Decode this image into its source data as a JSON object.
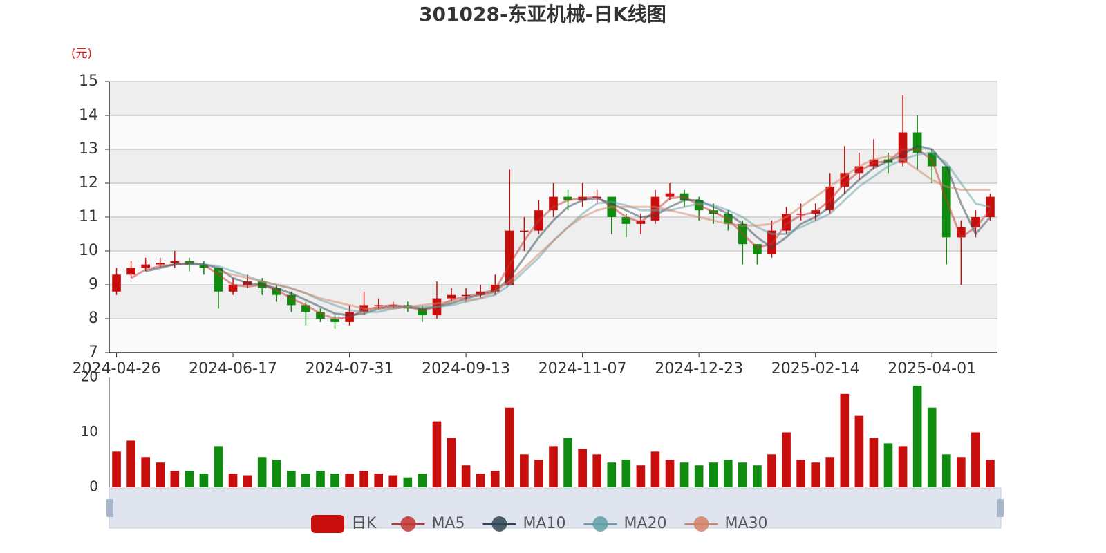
{
  "chart_data": {
    "type": "candlestick",
    "title": "301028-东亚机械-日K线图",
    "y_unit": "(元)",
    "candle_name": "日K",
    "up_color": "#c80d0d",
    "down_color": "#0f8c0f",
    "grid": true,
    "ylim": [
      7,
      15
    ],
    "yticks": [
      7,
      8,
      9,
      10,
      11,
      12,
      13,
      14,
      15
    ],
    "categories": [
      "2024-04-26",
      null,
      null,
      null,
      null,
      null,
      null,
      null,
      "2024-06-17",
      null,
      null,
      null,
      null,
      null,
      null,
      null,
      "2024-07-31",
      null,
      null,
      null,
      null,
      null,
      null,
      null,
      "2024-09-13",
      null,
      null,
      null,
      null,
      null,
      null,
      null,
      "2024-11-07",
      null,
      null,
      null,
      null,
      null,
      null,
      null,
      "2024-12-23",
      null,
      null,
      null,
      null,
      null,
      null,
      null,
      "2025-02-14",
      null,
      null,
      null,
      null,
      null,
      null,
      null,
      "2025-04-01",
      null,
      null,
      null,
      null
    ],
    "candles": [
      [
        8.8,
        9.3,
        8.7,
        9.5
      ],
      [
        9.3,
        9.5,
        9.2,
        9.7
      ],
      [
        9.5,
        9.6,
        9.4,
        9.8
      ],
      [
        9.6,
        9.65,
        9.5,
        9.8
      ],
      [
        9.65,
        9.7,
        9.5,
        10.0
      ],
      [
        9.7,
        9.6,
        9.4,
        9.8
      ],
      [
        9.6,
        9.5,
        9.3,
        9.7
      ],
      [
        9.5,
        8.8,
        8.3,
        9.5
      ],
      [
        8.8,
        9.0,
        8.7,
        9.2
      ],
      [
        9.0,
        9.1,
        8.9,
        9.3
      ],
      [
        9.1,
        8.9,
        8.7,
        9.2
      ],
      [
        8.9,
        8.7,
        8.5,
        9.0
      ],
      [
        8.7,
        8.4,
        8.2,
        8.8
      ],
      [
        8.4,
        8.2,
        7.8,
        8.5
      ],
      [
        8.2,
        8.0,
        7.9,
        8.3
      ],
      [
        8.0,
        7.9,
        7.7,
        8.1
      ],
      [
        7.9,
        8.2,
        7.8,
        8.4
      ],
      [
        8.2,
        8.4,
        8.1,
        8.8
      ],
      [
        8.4,
        8.4,
        8.3,
        8.6
      ],
      [
        8.4,
        8.4,
        8.3,
        8.5
      ],
      [
        8.4,
        8.3,
        8.2,
        8.5
      ],
      [
        8.3,
        8.1,
        7.9,
        8.4
      ],
      [
        8.1,
        8.6,
        8.0,
        9.1
      ],
      [
        8.6,
        8.7,
        8.5,
        8.9
      ],
      [
        8.7,
        8.7,
        8.5,
        8.9
      ],
      [
        8.7,
        8.8,
        8.6,
        9.0
      ],
      [
        8.8,
        9.0,
        8.7,
        9.3
      ],
      [
        9.0,
        10.6,
        9.0,
        12.4
      ],
      [
        10.6,
        10.6,
        10.0,
        11.0
      ],
      [
        10.6,
        11.2,
        10.5,
        11.5
      ],
      [
        11.2,
        11.6,
        11.0,
        12.0
      ],
      [
        11.6,
        11.5,
        11.2,
        11.8
      ],
      [
        11.5,
        11.6,
        11.3,
        12.0
      ],
      [
        11.6,
        11.6,
        11.4,
        11.8
      ],
      [
        11.6,
        11.0,
        10.5,
        11.6
      ],
      [
        11.0,
        10.8,
        10.4,
        11.1
      ],
      [
        10.8,
        10.9,
        10.5,
        11.1
      ],
      [
        10.9,
        11.6,
        10.8,
        11.8
      ],
      [
        11.6,
        11.7,
        11.5,
        12.0
      ],
      [
        11.7,
        11.5,
        11.3,
        11.8
      ],
      [
        11.5,
        11.2,
        10.9,
        11.6
      ],
      [
        11.2,
        11.1,
        10.8,
        11.4
      ],
      [
        11.1,
        10.8,
        10.6,
        11.2
      ],
      [
        10.8,
        10.2,
        9.6,
        10.9
      ],
      [
        10.2,
        9.9,
        9.6,
        10.2
      ],
      [
        9.9,
        10.6,
        9.8,
        10.9
      ],
      [
        10.6,
        11.1,
        10.5,
        11.3
      ],
      [
        11.1,
        11.1,
        10.9,
        11.4
      ],
      [
        11.1,
        11.2,
        10.9,
        11.4
      ],
      [
        11.2,
        11.9,
        11.1,
        12.3
      ],
      [
        11.9,
        12.3,
        11.7,
        13.1
      ],
      [
        12.3,
        12.5,
        12.1,
        12.9
      ],
      [
        12.5,
        12.7,
        12.4,
        13.3
      ],
      [
        12.7,
        12.6,
        12.3,
        12.9
      ],
      [
        12.6,
        13.5,
        12.5,
        14.6
      ],
      [
        13.5,
        12.9,
        12.4,
        14.0
      ],
      [
        12.9,
        12.5,
        12.0,
        13.0
      ],
      [
        12.5,
        10.4,
        9.6,
        12.5
      ],
      [
        10.4,
        10.7,
        9.0,
        10.9
      ],
      [
        10.7,
        11.0,
        10.4,
        11.2
      ],
      [
        11.0,
        11.6,
        10.9,
        11.7
      ]
    ],
    "series": [
      {
        "name": "MA5",
        "color": "#c23531",
        "values": [
          null,
          9.2,
          9.45,
          9.55,
          9.6,
          9.65,
          9.6,
          9.3,
          9.0,
          8.95,
          9.0,
          8.85,
          8.6,
          8.4,
          8.15,
          8.0,
          8.05,
          8.25,
          8.35,
          8.4,
          8.35,
          8.25,
          8.35,
          8.55,
          8.65,
          8.75,
          8.85,
          9.6,
          10.3,
          10.9,
          11.3,
          11.5,
          11.55,
          11.6,
          11.3,
          11.0,
          10.85,
          11.2,
          11.55,
          11.6,
          11.35,
          11.15,
          10.95,
          10.5,
          10.1,
          10.2,
          10.8,
          11.05,
          11.15,
          11.5,
          12.0,
          12.35,
          12.6,
          12.65,
          13.0,
          13.0,
          12.7,
          11.5,
          10.4,
          10.7,
          11.2
        ]
      },
      {
        "name": "MA10",
        "color": "#2f4554",
        "values": [
          null,
          null,
          9.4,
          9.5,
          9.6,
          9.62,
          9.6,
          9.5,
          9.2,
          9.05,
          9.0,
          8.9,
          8.75,
          8.55,
          8.35,
          8.15,
          8.1,
          8.15,
          8.3,
          8.35,
          8.35,
          8.3,
          8.35,
          8.45,
          8.6,
          8.7,
          8.8,
          9.2,
          9.8,
          10.4,
          10.9,
          11.3,
          11.5,
          11.55,
          11.4,
          11.2,
          11.0,
          11.05,
          11.3,
          11.5,
          11.5,
          11.3,
          11.1,
          10.8,
          10.4,
          10.1,
          10.4,
          10.8,
          11.0,
          11.3,
          11.7,
          12.1,
          12.45,
          12.65,
          12.85,
          13.1,
          13.0,
          12.5,
          11.4,
          10.5,
          11.0
        ]
      },
      {
        "name": "MA20",
        "color": "#61a0a8",
        "values": [
          null,
          null,
          null,
          null,
          null,
          9.6,
          9.6,
          9.55,
          9.4,
          9.25,
          9.1,
          9.0,
          8.9,
          8.75,
          8.55,
          8.4,
          8.25,
          8.2,
          8.2,
          8.3,
          8.35,
          8.35,
          8.35,
          8.4,
          8.5,
          8.6,
          8.7,
          9.0,
          9.4,
          9.8,
          10.3,
          10.7,
          11.1,
          11.4,
          11.45,
          11.35,
          11.2,
          11.2,
          11.2,
          11.3,
          11.4,
          11.35,
          11.2,
          11.0,
          10.7,
          10.5,
          10.5,
          10.7,
          10.9,
          11.1,
          11.5,
          11.9,
          12.2,
          12.5,
          12.7,
          12.85,
          12.9,
          12.6,
          12.0,
          11.4,
          11.3
        ]
      },
      {
        "name": "MA30",
        "color": "#d48265",
        "values": [
          null,
          null,
          null,
          null,
          null,
          null,
          null,
          9.4,
          9.3,
          9.2,
          9.1,
          9.0,
          8.9,
          8.75,
          8.6,
          8.5,
          8.4,
          8.3,
          8.3,
          8.3,
          8.35,
          8.4,
          8.45,
          8.5,
          8.55,
          8.6,
          8.8,
          9.1,
          9.5,
          9.9,
          10.3,
          10.7,
          11.0,
          11.2,
          11.3,
          11.3,
          11.3,
          11.3,
          11.2,
          11.1,
          11.0,
          10.9,
          10.8,
          10.75,
          10.75,
          10.8,
          11.0,
          11.3,
          11.6,
          11.9,
          12.2,
          12.5,
          12.7,
          12.8,
          12.7,
          12.4,
          12.1,
          11.9,
          11.8,
          11.8,
          11.8
        ]
      }
    ],
    "volume": {
      "ylim": [
        0,
        20
      ],
      "yticks": [
        0,
        10,
        20
      ],
      "values": [
        6.5,
        8.5,
        5.5,
        4.5,
        3,
        3,
        2.5,
        7.5,
        2.5,
        2.2,
        5.5,
        5,
        3,
        2.5,
        3,
        2.5,
        2.5,
        3,
        2.5,
        2.2,
        1.8,
        2.5,
        12,
        9,
        4,
        2.5,
        3,
        14.5,
        6,
        5,
        7.5,
        9,
        7,
        6,
        4.5,
        5,
        4,
        6.5,
        5,
        4.5,
        4,
        4.5,
        5,
        4.5,
        4,
        6,
        10,
        5,
        4.5,
        5.5,
        17,
        13,
        9,
        8,
        7.5,
        18.5,
        14.5,
        6,
        5.5,
        10,
        5
      ]
    }
  }
}
